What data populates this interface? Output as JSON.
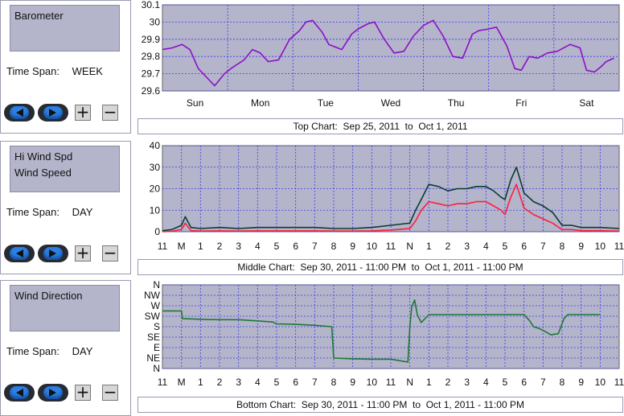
{
  "panels": [
    {
      "series": [
        "Barometer"
      ],
      "time_span_label": "Time Span:",
      "time_span_value": "WEEK"
    },
    {
      "series": [
        "Hi Wind Spd",
        "Wind Speed"
      ],
      "time_span_label": "Time Span:",
      "time_span_value": "DAY"
    },
    {
      "series": [
        "Wind Direction"
      ],
      "time_span_label": "Time Span:",
      "time_span_value": "DAY"
    }
  ],
  "captions": {
    "top": "Top Chart:  Sep 25, 2011  to  Oct 1, 2011",
    "middle": "Middle Chart:  Sep 30, 2011 - 11:00 PM  to  Oct 1, 2011 - 11:00 PM",
    "bottom": "Bottom Chart:  Sep 30, 2011 - 11:00 PM  to  Oct 1, 2011 - 11:00 PM"
  },
  "colors": {
    "plot_bg": "#b4b4ca",
    "grid": "#3c3cf0",
    "barometer": "#8c10c8",
    "hi_wind": "#0a3c32",
    "wind_speed": "#ff1e3c",
    "wind_dir": "#1e7837"
  },
  "icons": {
    "prev": "left-arrow-icon",
    "next": "right-arrow-icon",
    "zoom_in": "plus-icon",
    "zoom_out": "minus-icon"
  },
  "chart_data": [
    {
      "type": "line",
      "grid": true,
      "x_tick_labels": [
        "Sun",
        "Mon",
        "Tue",
        "Wed",
        "Thu",
        "Fri",
        "Sat"
      ],
      "xlim": [
        0,
        7
      ],
      "ylim": [
        29.6,
        30.1
      ],
      "y_ticks": [
        29.6,
        29.7,
        29.8,
        29.9,
        30.0,
        30.1
      ],
      "y_tick_labels": [
        "29.6",
        "29.7",
        "29.8",
        "29.9",
        "30",
        "30.1"
      ],
      "series": [
        {
          "name": "Barometer",
          "x": [
            0,
            0.15,
            0.3,
            0.42,
            0.55,
            0.7,
            0.8,
            0.95,
            1.05,
            1.25,
            1.38,
            1.5,
            1.62,
            1.78,
            1.95,
            2.1,
            2.2,
            2.3,
            2.45,
            2.55,
            2.75,
            2.9,
            3.0,
            3.15,
            3.25,
            3.4,
            3.55,
            3.7,
            3.85,
            4.0,
            4.15,
            4.3,
            4.45,
            4.6,
            4.75,
            4.85,
            5.0,
            5.12,
            5.28,
            5.4,
            5.5,
            5.62,
            5.75,
            5.9,
            6.05,
            6.25,
            6.4,
            6.5,
            6.62,
            6.72,
            6.8,
            6.92
          ],
          "y": [
            29.84,
            29.85,
            29.87,
            29.84,
            29.73,
            29.67,
            29.63,
            29.7,
            29.73,
            29.78,
            29.84,
            29.82,
            29.77,
            29.78,
            29.9,
            29.95,
            30.0,
            30.01,
            29.94,
            29.87,
            29.84,
            29.93,
            29.96,
            29.99,
            30.0,
            29.9,
            29.82,
            29.83,
            29.92,
            29.98,
            30.01,
            29.92,
            29.8,
            29.79,
            29.93,
            29.95,
            29.96,
            29.97,
            29.86,
            29.73,
            29.72,
            29.8,
            29.79,
            29.82,
            29.83,
            29.87,
            29.85,
            29.72,
            29.71,
            29.74,
            29.77,
            29.79
          ]
        }
      ]
    },
    {
      "type": "line",
      "grid": true,
      "x_tick_labels": [
        "11",
        "M",
        "1",
        "2",
        "3",
        "4",
        "5",
        "6",
        "7",
        "8",
        "9",
        "10",
        "11",
        "N",
        "1",
        "2",
        "3",
        "4",
        "5",
        "6",
        "7",
        "8",
        "9",
        "10",
        "11"
      ],
      "xlim": [
        0,
        24
      ],
      "ylim": [
        0,
        40
      ],
      "y_ticks": [
        0,
        10,
        20,
        30,
        40
      ],
      "y_tick_labels": [
        "0",
        "10",
        "20",
        "30",
        "40"
      ],
      "series": [
        {
          "name": "Hi Wind Spd",
          "x": [
            0,
            0.5,
            1.0,
            1.2,
            1.5,
            2,
            3,
            4,
            5,
            6,
            7,
            8,
            9,
            10,
            11,
            12,
            13,
            13.3,
            13.6,
            14,
            14.5,
            15,
            15.5,
            16,
            16.5,
            17,
            17.4,
            17.8,
            18,
            18.3,
            18.6,
            19,
            19.5,
            20,
            20.5,
            21,
            21.5,
            22,
            23,
            24
          ],
          "y": [
            0.5,
            1,
            3,
            7,
            2,
            1.5,
            2,
            1.5,
            2,
            2,
            2,
            2,
            1.5,
            1.5,
            2,
            3,
            4,
            10,
            15,
            22,
            21,
            19,
            20,
            20,
            21,
            21,
            19,
            16,
            15,
            24,
            30,
            18,
            14,
            12,
            9,
            3,
            3,
            2,
            2,
            1.5
          ]
        },
        {
          "name": "Wind Speed",
          "x": [
            0,
            0.5,
            1.0,
            1.2,
            1.5,
            2,
            3,
            4,
            5,
            6,
            7,
            8,
            9,
            10,
            11,
            12,
            13,
            13.3,
            13.6,
            14,
            14.5,
            15,
            15.5,
            16,
            16.5,
            17,
            17.4,
            17.8,
            18,
            18.3,
            18.6,
            19,
            19.5,
            20,
            20.5,
            21,
            21.5,
            22,
            23,
            24
          ],
          "y": [
            0,
            0.2,
            1,
            4,
            0.5,
            0.3,
            0.4,
            0.3,
            0.4,
            0.4,
            0.4,
            0.4,
            0.3,
            0.3,
            0.4,
            0.8,
            1.5,
            5,
            10,
            14,
            13,
            12,
            13,
            13,
            14,
            14,
            12,
            10,
            8,
            16,
            22,
            11,
            8,
            6,
            4,
            1,
            1,
            0.5,
            0.5,
            0.3
          ]
        }
      ]
    },
    {
      "type": "line",
      "grid": true,
      "x_tick_labels": [
        "11",
        "M",
        "1",
        "2",
        "3",
        "4",
        "5",
        "6",
        "7",
        "8",
        "9",
        "10",
        "11",
        "N",
        "1",
        "2",
        "3",
        "4",
        "5",
        "6",
        "7",
        "8",
        "9",
        "10",
        "11"
      ],
      "xlim": [
        0,
        24
      ],
      "y_ticks": [
        0,
        45,
        90,
        135,
        180,
        225,
        270,
        315,
        360
      ],
      "y_tick_labels": [
        "N",
        "NE",
        "E",
        "SE",
        "S",
        "SW",
        "W",
        "NW",
        "N"
      ],
      "ylim": [
        0,
        360
      ],
      "series": [
        {
          "name": "Wind Direction",
          "x": [
            0,
            0.9,
            1.0,
            1.05,
            2.0,
            3.0,
            4.0,
            5.0,
            5.8,
            6.0,
            7.0,
            8.0,
            8.9,
            9.0,
            10.0,
            11.0,
            12.0,
            12.9,
            13.0,
            13.1,
            13.25,
            13.4,
            13.6,
            14,
            15,
            16,
            17,
            18,
            19,
            19.3,
            19.5,
            19.8,
            20.1,
            20.4,
            20.8,
            21.1,
            21.3,
            22,
            23
          ],
          "y": [
            248,
            248,
            248,
            215,
            212,
            210,
            210,
            205,
            200,
            192,
            190,
            186,
            180,
            45,
            42,
            40,
            40,
            28,
            180,
            265,
            295,
            230,
            198,
            232,
            232,
            232,
            232,
            232,
            232,
            205,
            180,
            172,
            160,
            145,
            150,
            215,
            232,
            232,
            232
          ]
        }
      ]
    }
  ]
}
